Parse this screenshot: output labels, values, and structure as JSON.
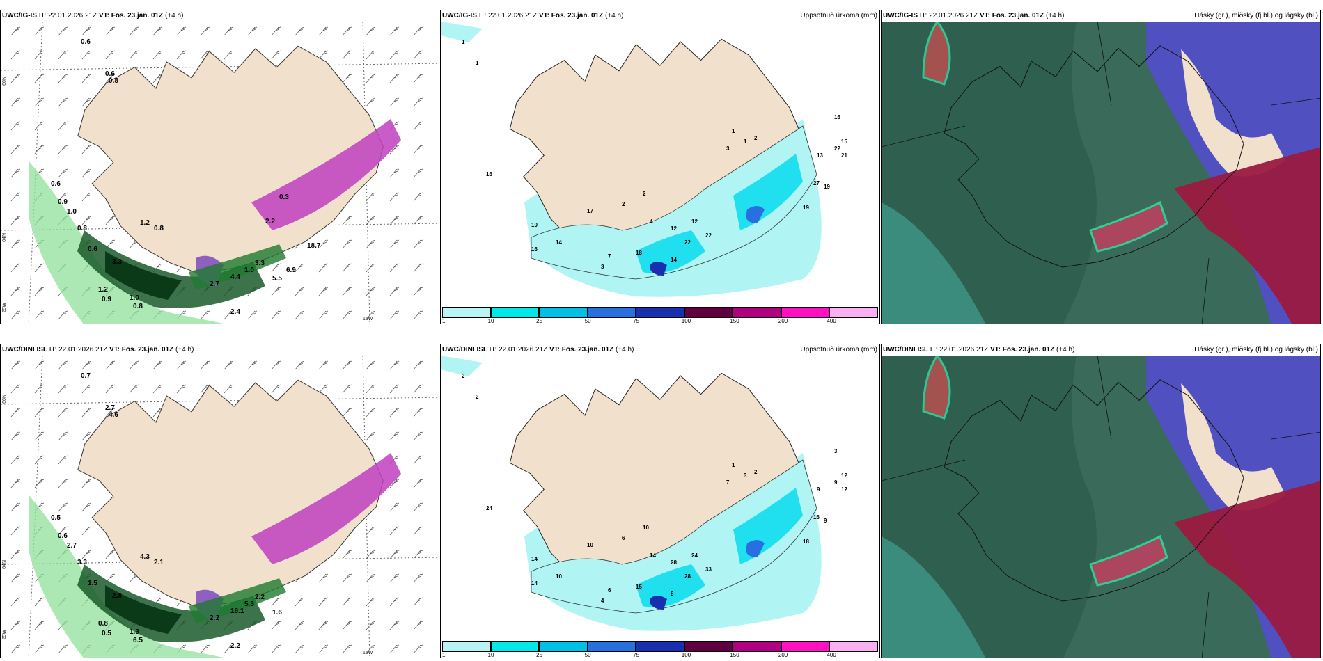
{
  "rows": [
    {
      "model": "UWC/IG-IS",
      "it_label": "IT:",
      "it_value": "22.01.2026 21Z",
      "vt_label": "VT:",
      "vt_value": "Fös. 23.jan. 01Z",
      "lead": "(+4 h)",
      "precip_title": "Uppsöfnuð úrkoma (mm)",
      "cloud_title": "Hásky (gr.), miðsky (fj.bl.) og lágsky (bl.)",
      "lat_labels": [
        "66N",
        "64N",
        "25W",
        "15W"
      ],
      "snow_labels": [
        "0.6",
        "0.6",
        "0.8",
        "0.6",
        "0.9",
        "1.0",
        "0.8",
        "0.6",
        "3.3",
        "1.2",
        "0.9",
        "1.0",
        "0.8",
        "1.2",
        "0.8",
        "2.4",
        "2.7",
        "1.0",
        "4.4",
        "3.3",
        "5.5",
        "6.9",
        "0.3",
        "2.2",
        "18.7"
      ],
      "precip_labels": [
        "1",
        "1",
        "16",
        "17",
        "14",
        "16",
        "10",
        "3",
        "7",
        "18",
        "14",
        "22",
        "12",
        "22",
        "4",
        "12",
        "2",
        "2",
        "3",
        "1",
        "1",
        "2",
        "16",
        "13",
        "22",
        "21",
        "19",
        "27",
        "19",
        "15"
      ]
    },
    {
      "model": "UWC/DINI ISL",
      "it_label": "IT:",
      "it_value": "22.01.2026 21Z",
      "vt_label": "VT:",
      "vt_value": "Fös. 23.jan. 01Z",
      "lead": "(+4 h)",
      "precip_title": "Uppsöfnuð úrkoma (mm)",
      "cloud_title": "Hásky (gr.), miðsky (fj.bl.) og lágsky (bl.)",
      "lat_labels": [
        "66N",
        "64N",
        "25W",
        "15W"
      ],
      "snow_labels": [
        "0.7",
        "2.7",
        "4.6",
        "0.5",
        "0.6",
        "2.7",
        "3.3",
        "1.5",
        "2.8",
        "0.8",
        "0.5",
        "1.3",
        "6.5",
        "4.3",
        "2.1",
        "2.2",
        "2.2",
        "5.3",
        "18.1",
        "2.2",
        "1.6"
      ],
      "precip_labels": [
        "2",
        "2",
        "24",
        "10",
        "10",
        "14",
        "14",
        "4",
        "6",
        "15",
        "8",
        "28",
        "24",
        "33",
        "14",
        "28",
        "10",
        "6",
        "7",
        "1",
        "3",
        "2",
        "3",
        "9",
        "9",
        "12",
        "9",
        "16",
        "18",
        "12"
      ]
    }
  ],
  "colorbar": {
    "ticks": [
      "1",
      "10",
      "25",
      "50",
      "75",
      "100",
      "150",
      "200",
      "400"
    ],
    "colors": [
      "#b8f4f4",
      "#00e8e8",
      "#00c0e8",
      "#2870e0",
      "#1830b0",
      "#600040",
      "#b00080",
      "#ff10c0",
      "#f8b0f0"
    ]
  },
  "palette": {
    "land": "#f0e0cc",
    "precip_light": "#b0f4f4",
    "precip_mid": "#20e0f0",
    "snow_green": "#1a5a2a",
    "snow_magenta": "#c040c0",
    "cloud_dark": "#3a6a5a",
    "cloud_blue": "#5050c0",
    "cloud_red": "#9a1a40"
  }
}
